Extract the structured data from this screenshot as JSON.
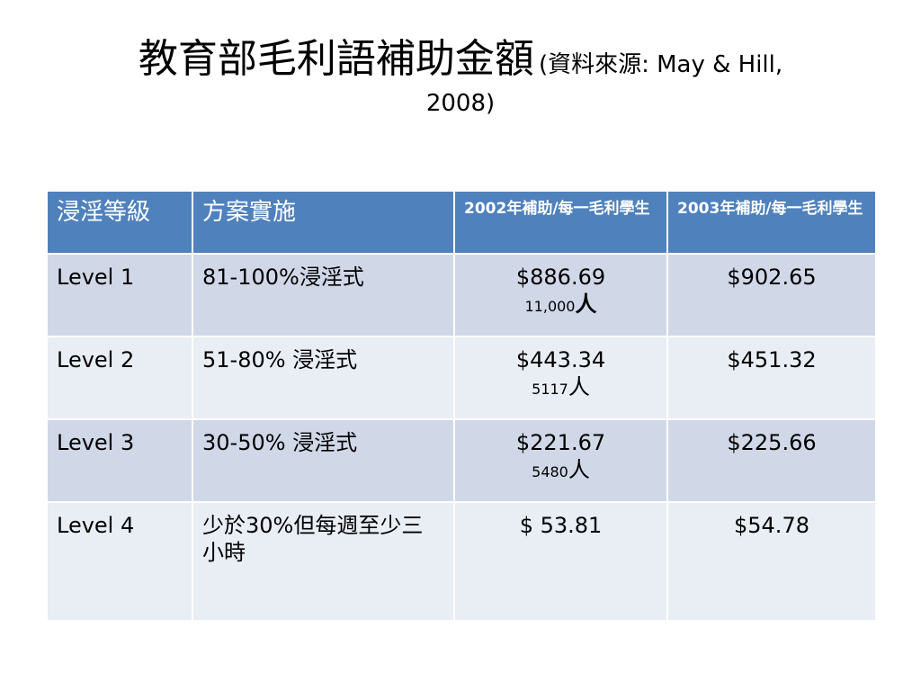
{
  "title": {
    "main": "教育部毛利語補助金額",
    "source_line1": "(資料來源: May & Hill,",
    "source_line2": "2008)"
  },
  "table": {
    "headers": [
      "浸淫等級",
      "方案實施",
      "2002年補助/每一毛利學生",
      "2003年補助/每一毛利學生"
    ],
    "rows": [
      {
        "level": "Level 1",
        "program": "81-100%浸淫式",
        "y2002": "$886.69",
        "count_number": "11,000",
        "count_unit": "人",
        "y2003": "$902.65"
      },
      {
        "level": "Level 2",
        "program": "51-80% 浸淫式",
        "y2002": "$443.34",
        "count_number": "5117",
        "count_unit": "人",
        "y2003": "$451.32"
      },
      {
        "level": "Level 3",
        "program": "30-50% 浸淫式",
        "y2002": "$221.67",
        "count_number": "5480",
        "count_unit": "人",
        "y2003": "$225.66"
      },
      {
        "level": "Level 4",
        "program": "少於30%但每週至少三小時",
        "y2002": "$ 53.81",
        "y2003": "$54.78"
      }
    ]
  },
  "colors": {
    "header_bg": "#4f81bd",
    "row_odd_bg": "#d0d8e8",
    "row_even_bg": "#e9edf4"
  }
}
